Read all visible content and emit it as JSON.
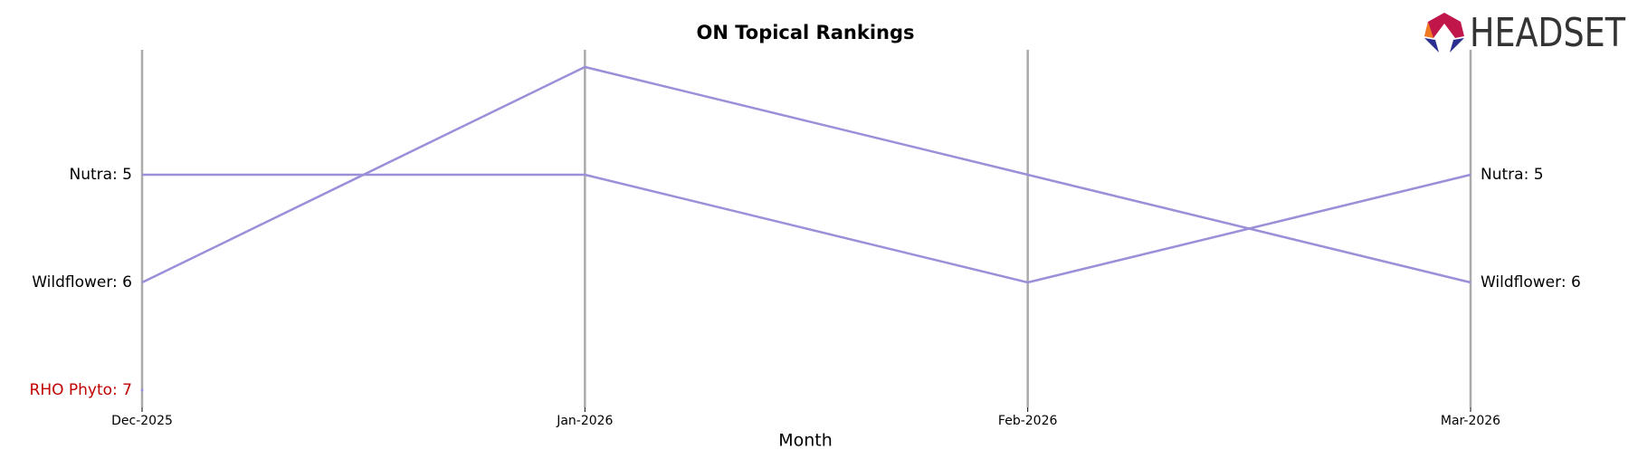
{
  "chart_data": {
    "type": "bump",
    "title": "ON Topical Rankings",
    "x_label": "Month",
    "categories": [
      "Dec-2025",
      "Jan-2026",
      "Feb-2026",
      "Mar-2026"
    ],
    "ylim": [
      7,
      4
    ],
    "inverted": true,
    "series": [
      {
        "name": "Nutra",
        "color": "#9b8fd9",
        "label_color": "#000000",
        "values": [
          5,
          5,
          6,
          5
        ],
        "value_labels": [
          "Nutra: 5",
          null,
          null,
          "Nutra: 5"
        ]
      },
      {
        "name": "Wildflower",
        "color": "#9b8fd9",
        "label_color": "#000000",
        "values": [
          6,
          4,
          5,
          6
        ],
        "value_labels": [
          "Wildflower: 6",
          null,
          null,
          "Wildflower: 6"
        ]
      },
      {
        "name": "RHO Phyto",
        "color": "#9b8fd9",
        "label_color": "#c00000",
        "values": [
          7,
          null,
          null,
          null
        ],
        "value_labels": [
          "RHO Phyto: 7",
          null,
          null,
          null
        ]
      }
    ]
  },
  "logo": "HEADSET"
}
